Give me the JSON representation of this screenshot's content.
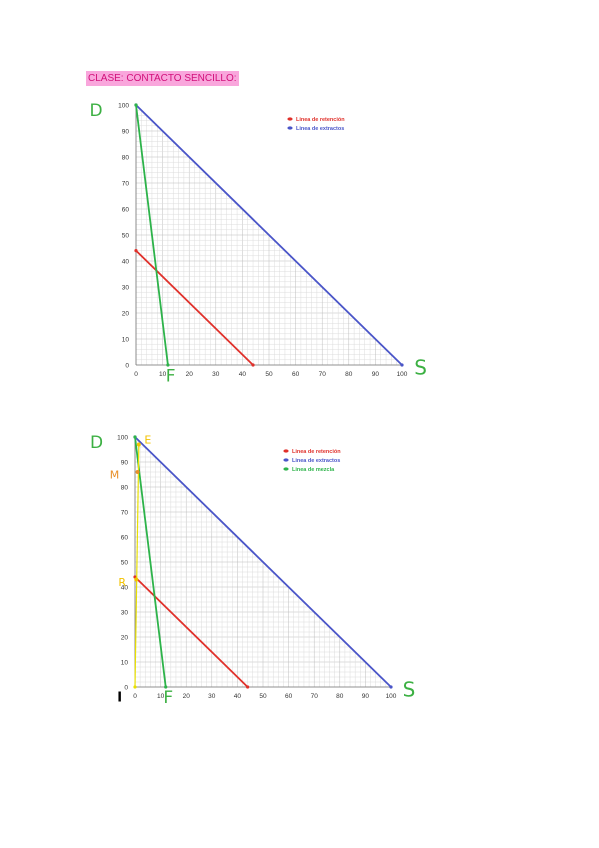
{
  "heading": "CLASE: CONTACTO SENCILLO:",
  "colors": {
    "retencion": "#e0302a",
    "extractos": "#4a55c8",
    "mezcla": "#2db34a",
    "hand_green": "#3cb043",
    "hand_yellow": "#f2c200",
    "hand_orange": "#e8902a",
    "yellow_line": "#e8e000"
  },
  "chart_data": [
    {
      "type": "line",
      "title": "",
      "xlabel": "",
      "ylabel": "",
      "xlim": [
        0,
        100
      ],
      "ylim": [
        0,
        100
      ],
      "grid": true,
      "legend": "top-right",
      "x_ticks": [
        0,
        10,
        20,
        30,
        40,
        50,
        60,
        70,
        80,
        90,
        100
      ],
      "y_ticks": [
        0,
        10,
        20,
        30,
        40,
        50,
        60,
        70,
        80,
        90,
        100
      ],
      "series": [
        {
          "name": "Linea de retención",
          "color": "retencion",
          "points": [
            [
              0,
              44
            ],
            [
              44,
              0
            ]
          ]
        },
        {
          "name": "Linea de extractos",
          "color": "extractos",
          "points": [
            [
              0,
              100
            ],
            [
              100,
              0
            ]
          ]
        },
        {
          "name": "",
          "color": "mezcla",
          "points": [
            [
              0,
              100
            ],
            [
              12,
              0
            ]
          ]
        }
      ],
      "annotations": [
        {
          "text": "D",
          "x": -15,
          "y": 98,
          "color": "hand_green"
        },
        {
          "text": "F",
          "x": 13,
          "y": -4,
          "color": "hand_green"
        },
        {
          "text": "S",
          "x": 107,
          "y": -1,
          "color": "hand_green"
        }
      ]
    },
    {
      "type": "line",
      "title": "",
      "xlabel": "",
      "ylabel": "",
      "xlim": [
        0,
        100
      ],
      "ylim": [
        0,
        100
      ],
      "grid": true,
      "legend": "top-right",
      "x_ticks": [
        0,
        10,
        20,
        30,
        40,
        50,
        60,
        70,
        80,
        90,
        100
      ],
      "y_ticks": [
        0,
        10,
        20,
        30,
        40,
        50,
        60,
        70,
        80,
        90,
        100
      ],
      "series": [
        {
          "name": "Linea de retención",
          "color": "retencion",
          "points": [
            [
              0,
              44
            ],
            [
              44,
              0
            ]
          ]
        },
        {
          "name": "Linea de extractos",
          "color": "extractos",
          "points": [
            [
              0,
              100
            ],
            [
              100,
              0
            ]
          ]
        },
        {
          "name": "Linea de mezcla",
          "color": "mezcla",
          "points": [
            [
              0,
              100
            ],
            [
              12,
              0
            ]
          ]
        },
        {
          "name": "",
          "color": "yellow_line",
          "points": [
            [
              0,
              0
            ],
            [
              1.5,
              97
            ]
          ]
        }
      ],
      "markers": [
        {
          "x": 1.5,
          "y": 97,
          "color": "hand_yellow"
        },
        {
          "x": 1,
          "y": 86,
          "color": "hand_orange"
        },
        {
          "x": 0.5,
          "y": 43,
          "color": "hand_yellow"
        }
      ],
      "annotations": [
        {
          "text": "D",
          "x": -15,
          "y": 98,
          "color": "hand_green"
        },
        {
          "text": "E",
          "x": 5,
          "y": 99,
          "color": "hand_yellow"
        },
        {
          "text": "M",
          "x": -8,
          "y": 85,
          "color": "hand_orange"
        },
        {
          "text": "R",
          "x": -5,
          "y": 42,
          "color": "hand_yellow"
        },
        {
          "text": "I",
          "x": -6,
          "y": -4,
          "color": "black"
        },
        {
          "text": "F",
          "x": 13,
          "y": -4,
          "color": "hand_green"
        },
        {
          "text": "S",
          "x": 107,
          "y": -1,
          "color": "hand_green"
        }
      ]
    }
  ]
}
